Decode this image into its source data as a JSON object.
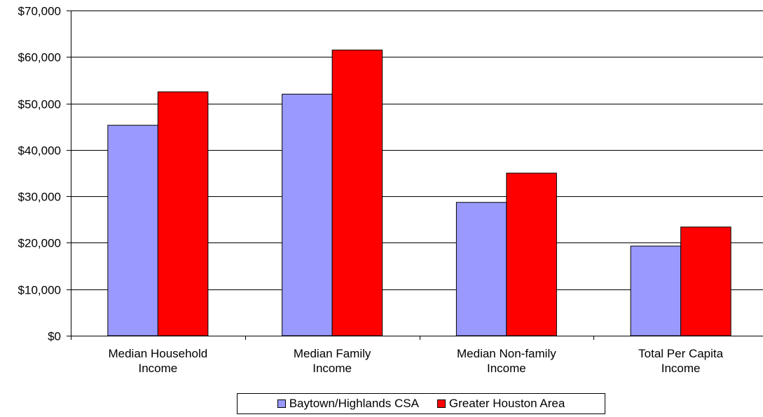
{
  "chart_data": {
    "type": "bar",
    "title": "",
    "xlabel": "",
    "ylabel": "",
    "categories": [
      [
        "Median Household",
        "Income"
      ],
      [
        "Median Family",
        "Income"
      ],
      [
        "Median Non-family",
        "Income"
      ],
      [
        "Total Per Capita",
        "Income"
      ]
    ],
    "series": [
      {
        "name": "Baytown/Highlands CSA",
        "color": "#9999ff",
        "values": [
          45300,
          52000,
          28700,
          19300
        ]
      },
      {
        "name": "Greater Houston Area",
        "color": "#ff0000",
        "values": [
          52500,
          61500,
          35000,
          23400
        ]
      }
    ],
    "ylim": [
      0,
      70000
    ],
    "yticks": [
      0,
      10000,
      20000,
      30000,
      40000,
      50000,
      60000,
      70000
    ],
    "ytick_labels": [
      "$0",
      "$10,000",
      "$20,000",
      "$30,000",
      "$40,000",
      "$50,000",
      "$60,000",
      "$70,000"
    ],
    "grid": true,
    "legend_position": "bottom"
  }
}
